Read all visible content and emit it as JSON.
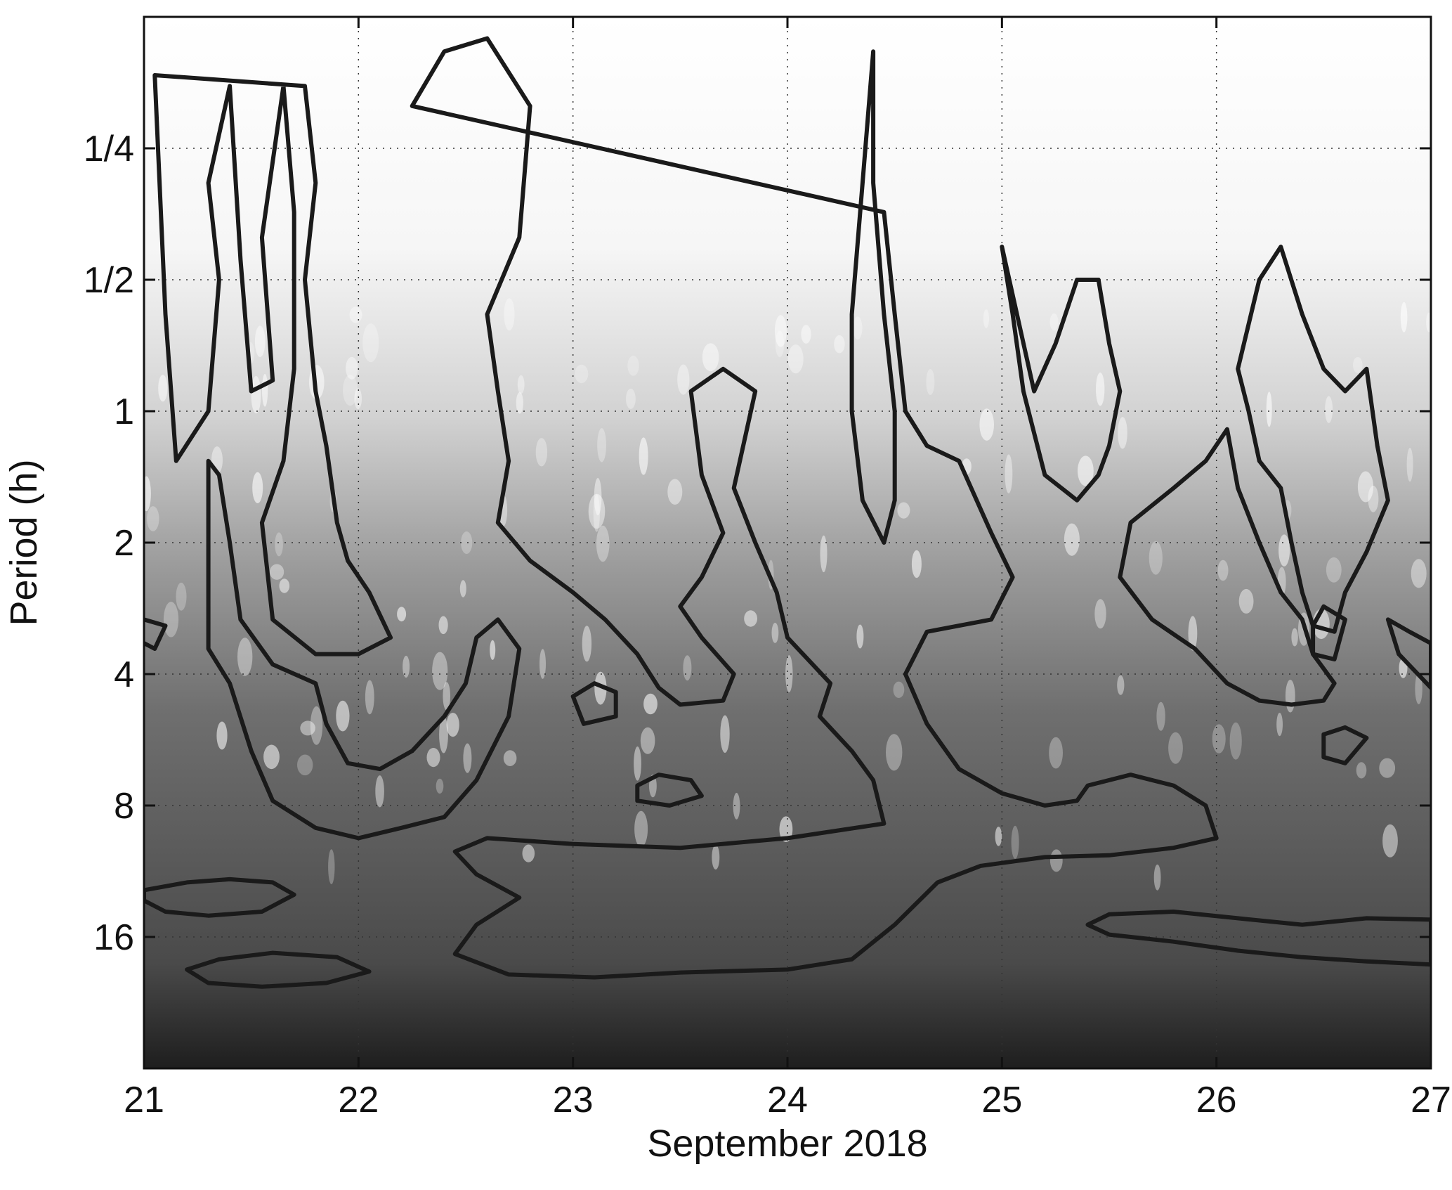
{
  "chart_data": {
    "type": "heatmap",
    "title": "",
    "xlabel": "September 2018",
    "ylabel": "Period (h)",
    "x_ticks": [
      "21",
      "22",
      "23",
      "24",
      "25",
      "26",
      "27"
    ],
    "x_tick_values": [
      21,
      22,
      23,
      24,
      25,
      26,
      27
    ],
    "xlim": [
      21,
      27
    ],
    "y_ticks": [
      "1/4",
      "1/2",
      "1",
      "2",
      "4",
      "8",
      "16"
    ],
    "y_tick_values": [
      0.25,
      0.5,
      1,
      2,
      4,
      8,
      16
    ],
    "ylim": [
      0.125,
      32
    ],
    "y_scale": "log2",
    "y_reversed": true,
    "grid": true,
    "grid_style": "dotted",
    "colormap": "grayscale",
    "colors": {
      "high": "#ffffff",
      "low": "#2a2a2a",
      "contour": "#1a1a1a"
    },
    "contours": [
      {
        "points": [
          [
            21.05,
            0.17
          ],
          [
            21.1,
            0.6
          ],
          [
            21.15,
            1.3
          ],
          [
            21.3,
            1.0
          ],
          [
            21.35,
            0.5
          ],
          [
            21.3,
            0.3
          ],
          [
            21.4,
            0.18
          ],
          [
            21.45,
            0.45
          ],
          [
            21.5,
            0.9
          ],
          [
            21.6,
            0.85
          ],
          [
            21.55,
            0.4
          ],
          [
            21.65,
            0.18
          ],
          [
            21.7,
            0.35
          ],
          [
            21.7,
            0.8
          ],
          [
            21.65,
            1.3
          ],
          [
            21.55,
            1.8
          ],
          [
            21.6,
            3.0
          ],
          [
            21.8,
            3.6
          ],
          [
            22.0,
            3.6
          ],
          [
            22.15,
            3.3
          ],
          [
            22.05,
            2.6
          ],
          [
            21.95,
            2.2
          ],
          [
            21.9,
            1.8
          ],
          [
            21.85,
            1.2
          ],
          [
            21.8,
            0.9
          ],
          [
            21.75,
            0.5
          ],
          [
            21.8,
            0.3
          ],
          [
            21.75,
            0.18
          ]
        ]
      },
      {
        "points": [
          [
            21.3,
            1.3
          ],
          [
            21.3,
            3.5
          ],
          [
            21.4,
            4.2
          ],
          [
            21.5,
            6.0
          ],
          [
            21.6,
            7.8
          ],
          [
            21.8,
            9.0
          ],
          [
            22.0,
            9.5
          ],
          [
            22.2,
            9.0
          ],
          [
            22.4,
            8.5
          ],
          [
            22.55,
            7.0
          ],
          [
            22.7,
            5.0
          ],
          [
            22.75,
            3.5
          ],
          [
            22.65,
            3.0
          ],
          [
            22.55,
            3.3
          ],
          [
            22.5,
            4.2
          ],
          [
            22.4,
            5.0
          ],
          [
            22.25,
            6.0
          ],
          [
            22.1,
            6.6
          ],
          [
            21.95,
            6.4
          ],
          [
            21.85,
            5.2
          ],
          [
            21.8,
            4.2
          ],
          [
            21.6,
            3.8
          ],
          [
            21.45,
            3.0
          ],
          [
            21.4,
            2.0
          ],
          [
            21.35,
            1.4
          ]
        ]
      },
      {
        "points": [
          [
            22.25,
            0.2
          ],
          [
            22.4,
            0.15
          ],
          [
            22.6,
            0.14
          ],
          [
            22.8,
            0.2
          ],
          [
            22.75,
            0.4
          ],
          [
            22.6,
            0.6
          ],
          [
            22.65,
            0.9
          ],
          [
            22.7,
            1.3
          ],
          [
            22.65,
            1.8
          ],
          [
            22.8,
            2.2
          ],
          [
            23.0,
            2.6
          ],
          [
            23.15,
            3.0
          ],
          [
            23.3,
            3.6
          ],
          [
            23.4,
            4.3
          ],
          [
            23.5,
            4.7
          ],
          [
            23.7,
            4.6
          ],
          [
            23.75,
            4.0
          ],
          [
            23.6,
            3.3
          ],
          [
            23.5,
            2.8
          ],
          [
            23.6,
            2.4
          ],
          [
            23.7,
            1.9
          ],
          [
            23.6,
            1.4
          ],
          [
            23.55,
            0.9
          ],
          [
            23.7,
            0.8
          ],
          [
            23.85,
            0.9
          ],
          [
            23.75,
            1.5
          ],
          [
            23.85,
            2.0
          ],
          [
            23.95,
            2.6
          ],
          [
            24.0,
            3.3
          ],
          [
            24.2,
            4.2
          ],
          [
            24.15,
            5.0
          ],
          [
            24.3,
            6.0
          ],
          [
            24.4,
            7.0
          ],
          [
            24.45,
            8.8
          ],
          [
            24.0,
            9.5
          ],
          [
            23.5,
            10.0
          ],
          [
            23.0,
            9.8
          ],
          [
            22.6,
            9.5
          ],
          [
            22.45,
            10.2
          ],
          [
            22.55,
            11.5
          ],
          [
            22.75,
            13.0
          ],
          [
            22.55,
            15.0
          ],
          [
            22.45,
            17.5
          ],
          [
            22.7,
            19.5
          ],
          [
            23.1,
            19.8
          ],
          [
            23.5,
            19.3
          ],
          [
            24.0,
            19.0
          ],
          [
            24.3,
            18.0
          ],
          [
            24.5,
            15.0
          ],
          [
            24.7,
            12.0
          ],
          [
            24.9,
            11.0
          ],
          [
            25.2,
            10.5
          ],
          [
            25.5,
            10.4
          ],
          [
            25.8,
            10.0
          ],
          [
            26.0,
            9.5
          ],
          [
            25.95,
            8.0
          ],
          [
            25.8,
            7.2
          ],
          [
            25.6,
            6.8
          ],
          [
            25.4,
            7.2
          ],
          [
            25.35,
            7.8
          ],
          [
            25.2,
            8.0
          ],
          [
            25.0,
            7.5
          ],
          [
            24.8,
            6.6
          ],
          [
            24.65,
            5.2
          ],
          [
            24.55,
            4.0
          ],
          [
            24.65,
            3.2
          ],
          [
            24.95,
            3.0
          ],
          [
            25.05,
            2.4
          ],
          [
            24.95,
            1.9
          ],
          [
            24.8,
            1.3
          ],
          [
            24.65,
            1.2
          ],
          [
            24.55,
            1.0
          ],
          [
            24.5,
            0.6
          ],
          [
            24.45,
            0.35
          ]
        ]
      },
      {
        "points": [
          [
            24.4,
            0.15
          ],
          [
            24.35,
            0.3
          ],
          [
            24.3,
            0.6
          ],
          [
            24.3,
            1.0
          ],
          [
            24.35,
            1.6
          ],
          [
            24.45,
            2.0
          ],
          [
            24.5,
            1.6
          ],
          [
            24.5,
            1.0
          ],
          [
            24.45,
            0.6
          ],
          [
            24.4,
            0.3
          ]
        ]
      },
      {
        "points": [
          [
            25.0,
            0.42
          ],
          [
            25.05,
            0.6
          ],
          [
            25.1,
            0.9
          ],
          [
            25.2,
            1.4
          ],
          [
            25.35,
            1.6
          ],
          [
            25.45,
            1.4
          ],
          [
            25.5,
            1.2
          ],
          [
            25.55,
            0.9
          ],
          [
            25.5,
            0.7
          ],
          [
            25.45,
            0.5
          ],
          [
            25.35,
            0.5
          ],
          [
            25.25,
            0.7
          ],
          [
            25.15,
            0.9
          ]
        ]
      },
      {
        "points": [
          [
            25.6,
            1.8
          ],
          [
            25.55,
            2.4
          ],
          [
            25.7,
            3.0
          ],
          [
            25.9,
            3.5
          ],
          [
            26.05,
            4.2
          ],
          [
            26.2,
            4.6
          ],
          [
            26.35,
            4.7
          ],
          [
            26.5,
            4.6
          ],
          [
            26.55,
            4.2
          ],
          [
            26.45,
            3.6
          ],
          [
            26.4,
            3.0
          ],
          [
            26.3,
            2.6
          ],
          [
            26.2,
            2.0
          ],
          [
            26.1,
            1.5
          ],
          [
            26.05,
            1.1
          ],
          [
            25.95,
            1.3
          ],
          [
            25.8,
            1.5
          ]
        ]
      },
      {
        "points": [
          [
            26.15,
            1.0
          ],
          [
            26.1,
            0.8
          ],
          [
            26.2,
            0.5
          ],
          [
            26.3,
            0.42
          ],
          [
            26.4,
            0.6
          ],
          [
            26.5,
            0.8
          ],
          [
            26.6,
            0.9
          ],
          [
            26.7,
            0.8
          ],
          [
            26.75,
            1.2
          ],
          [
            26.8,
            1.6
          ],
          [
            26.7,
            2.1
          ],
          [
            26.6,
            2.6
          ],
          [
            26.55,
            3.2
          ],
          [
            26.45,
            3.1
          ],
          [
            26.4,
            2.6
          ],
          [
            26.35,
            2.0
          ],
          [
            26.3,
            1.5
          ],
          [
            26.2,
            1.3
          ]
        ]
      },
      {
        "points": [
          [
            26.8,
            3.0
          ],
          [
            26.85,
            3.6
          ],
          [
            27.0,
            4.3
          ],
          [
            27.0,
            3.4
          ],
          [
            26.9,
            3.2
          ]
        ]
      },
      {
        "points": [
          [
            21.0,
            12.5
          ],
          [
            21.2,
            12.0
          ],
          [
            21.4,
            11.8
          ],
          [
            21.6,
            12.0
          ],
          [
            21.7,
            12.8
          ],
          [
            21.55,
            14.0
          ],
          [
            21.3,
            14.3
          ],
          [
            21.1,
            14.0
          ],
          [
            21.0,
            13.2
          ]
        ]
      },
      {
        "points": [
          [
            21.2,
            19.0
          ],
          [
            21.35,
            18.0
          ],
          [
            21.6,
            17.4
          ],
          [
            21.9,
            17.8
          ],
          [
            22.05,
            19.2
          ],
          [
            21.85,
            20.4
          ],
          [
            21.55,
            20.8
          ],
          [
            21.3,
            20.4
          ]
        ]
      },
      {
        "points": [
          [
            25.4,
            15.0
          ],
          [
            25.5,
            14.2
          ],
          [
            25.8,
            14.0
          ],
          [
            26.1,
            14.5
          ],
          [
            26.4,
            15.0
          ],
          [
            26.7,
            14.5
          ],
          [
            27.0,
            14.6
          ],
          [
            27.0,
            18.5
          ],
          [
            26.7,
            18.2
          ],
          [
            26.4,
            17.8
          ],
          [
            26.1,
            17.2
          ],
          [
            25.8,
            16.4
          ],
          [
            25.5,
            15.8
          ]
        ]
      },
      {
        "points": [
          [
            23.3,
            7.2
          ],
          [
            23.4,
            6.8
          ],
          [
            23.55,
            7.0
          ],
          [
            23.6,
            7.6
          ],
          [
            23.45,
            8.0
          ],
          [
            23.3,
            7.8
          ]
        ]
      },
      {
        "points": [
          [
            23.0,
            4.5
          ],
          [
            23.1,
            4.2
          ],
          [
            23.2,
            4.4
          ],
          [
            23.2,
            5.0
          ],
          [
            23.05,
            5.2
          ]
        ]
      },
      {
        "points": [
          [
            21.0,
            3.0
          ],
          [
            21.1,
            3.1
          ],
          [
            21.05,
            3.5
          ],
          [
            20.95,
            3.3
          ]
        ]
      },
      {
        "points": [
          [
            26.5,
            5.5
          ],
          [
            26.6,
            5.3
          ],
          [
            26.7,
            5.6
          ],
          [
            26.6,
            6.4
          ],
          [
            26.5,
            6.2
          ]
        ]
      },
      {
        "points": [
          [
            26.5,
            2.8
          ],
          [
            26.6,
            3.0
          ],
          [
            26.55,
            3.7
          ],
          [
            26.45,
            3.6
          ],
          [
            26.45,
            3.1
          ]
        ]
      }
    ]
  }
}
